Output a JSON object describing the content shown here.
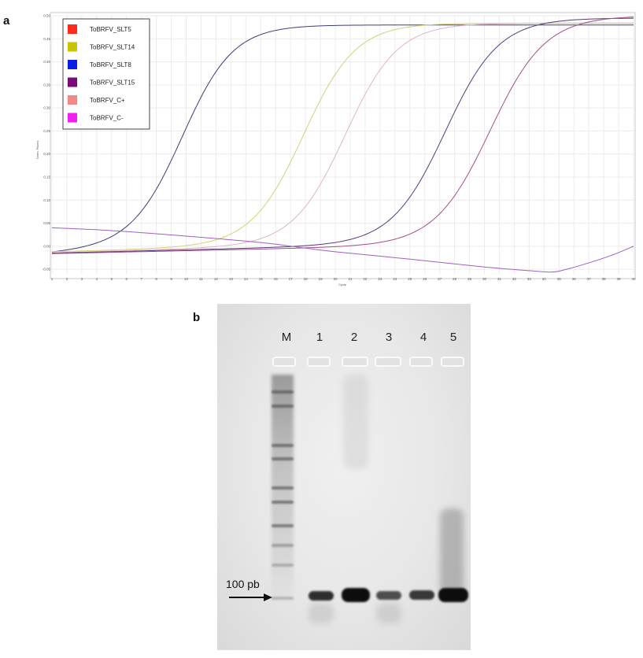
{
  "panels": {
    "a_label": "a",
    "b_label": "b"
  },
  "chart_data": {
    "type": "line",
    "title": "",
    "xlabel": "Cycle",
    "ylabel": "Norm. Fluoro.",
    "xlim": [
      1,
      40
    ],
    "ylim": [
      -0.06,
      0.5
    ],
    "grid": true,
    "legend_position": "top-left",
    "x_ticks": [
      1,
      2,
      3,
      4,
      5,
      6,
      7,
      8,
      9,
      10,
      11,
      12,
      13,
      14,
      15,
      16,
      17,
      18,
      19,
      20,
      21,
      22,
      23,
      24,
      25,
      26,
      27,
      28,
      29,
      30,
      31,
      32,
      33,
      34,
      35,
      36,
      37,
      38,
      39,
      40
    ],
    "y_ticks": [
      -0.05,
      0.0,
      0.05,
      0.1,
      0.15,
      0.2,
      0.25,
      0.3,
      0.35,
      0.4,
      0.45,
      0.5
    ],
    "y_tick_labels": [
      "-0.05",
      "0.00",
      "0.05",
      "0.10",
      "0.15",
      "0.20",
      "0.25",
      "0.30",
      "0.35",
      "0.40",
      "0.45",
      "0.50"
    ],
    "legend": [
      {
        "name": "ToBRFV_SLT5",
        "color": "#ff2a1a"
      },
      {
        "name": "ToBRFV_SLT14",
        "color": "#c8c400"
      },
      {
        "name": "ToBRFV_SLT8",
        "color": "#0a1ee6"
      },
      {
        "name": "ToBRFV_SLT15",
        "color": "#7a0a7a"
      },
      {
        "name": "ToBRFV_C+",
        "color": "#f08a8a"
      },
      {
        "name": "ToBRFV_C-",
        "color": "#f020f0"
      }
    ],
    "series": [
      {
        "line_color": "#3c3f7a",
        "model": "sigmoid",
        "ct": 9.8,
        "slope": 1.7,
        "base_start": -0.015,
        "base_slope": 0.0022,
        "plateau": 0.48
      },
      {
        "line_color": "#d6d07a",
        "model": "sigmoid",
        "ct": 17.9,
        "slope": 1.75,
        "base_start": -0.012,
        "base_slope": 0.0009,
        "plateau": 0.484
      },
      {
        "line_color": "#e0b4c8",
        "model": "sigmoid",
        "ct": 20.7,
        "slope": 1.75,
        "base_start": -0.014,
        "base_slope": 0.0009,
        "plateau": 0.484
      },
      {
        "line_color": "#5a3a7a",
        "model": "sigmoid",
        "ct": 27.4,
        "slope": 1.8,
        "base_start": -0.015,
        "base_slope": 0.0008,
        "plateau": 0.495
      },
      {
        "line_color": "#a0508a",
        "model": "sigmoid",
        "ct": 30.4,
        "slope": 1.85,
        "base_start": -0.016,
        "base_slope": 0.0007,
        "plateau": 0.5
      },
      {
        "line_color": "#a060c0",
        "model": "points",
        "x": [
          1,
          5,
          10,
          15,
          18,
          20,
          25,
          30,
          33,
          34.5,
          35.5,
          37,
          38.5,
          40
        ],
        "y": [
          0.04,
          0.034,
          0.022,
          0.008,
          -0.004,
          -0.012,
          -0.028,
          -0.045,
          -0.053,
          -0.056,
          -0.05,
          -0.036,
          -0.02,
          0.0
        ]
      }
    ]
  },
  "gel": {
    "lane_labels": [
      "M",
      "1",
      "2",
      "3",
      "4",
      "5"
    ],
    "marker_label": "100 pb"
  }
}
